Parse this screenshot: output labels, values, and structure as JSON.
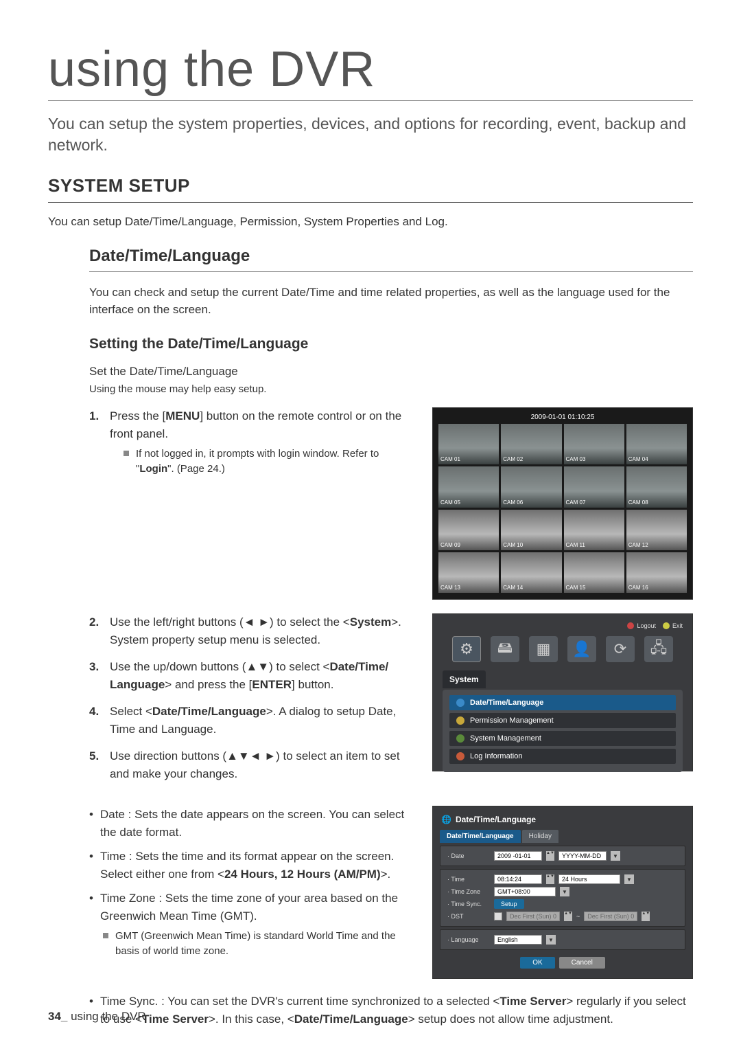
{
  "page": {
    "title": "using the DVR",
    "intro": "You can setup the system properties, devices, and options for recording, event, backup and network.",
    "section_title": "SYSTEM SETUP",
    "section_desc": "You can setup Date/Time/Language, Permission, System Properties and Log.",
    "sub_title": "Date/Time/Language",
    "sub_desc": "You can check and setup the current Date/Time and time related properties, as well as the language used for the interface on the screen.",
    "sub2_title": "Setting the Date/Time/Language",
    "sub2_desc": "Set the Date/Time/Language",
    "sub2_note": "Using the mouse may help easy setup.",
    "step1_a": "Press the [",
    "step1_menu": "MENU",
    "step1_b": "] button on the remote control or on the front panel.",
    "step1_note_a": "If not logged in, it prompts with login window. Refer to \"",
    "step1_note_login": "Login",
    "step1_note_b": "\". (Page 24.)",
    "step2_a": "Use the left/right buttons (◄ ►) to select the <",
    "step2_sys": "System",
    "step2_b": ">. System property setup menu is selected.",
    "step3_a": "Use the up/down buttons (▲▼) to select <",
    "step3_item": "Date/Time/ Language",
    "step3_b": "> and press the [",
    "step3_enter": "ENTER",
    "step3_c": "] button.",
    "step4_a": "Select <",
    "step4_item": "Date/Time/Language",
    "step4_b": ">. A dialog to setup Date, Time and Language.",
    "step5": "Use direction buttons (▲▼◄ ►) to select an item to set and make your changes.",
    "bul_date": "Date : Sets the date appears on the screen. You can select the date format.",
    "bul_time_a": "Time : Sets the time and its format appear on the screen. Select either one from <",
    "bul_time_fmt": "24 Hours, 12 Hours (AM/PM)",
    "bul_time_b": ">.",
    "bul_tz": "Time Zone : Sets the time zone of your area based on the Greenwich Mean Time (GMT).",
    "bul_tz_note": "GMT (Greenwich Mean Time) is standard World Time and the basis of world time zone.",
    "bul_sync_a": "Time Sync. : You can set the DVR's current time synchronized to a selected <",
    "bul_sync_ts": "Time Server",
    "bul_sync_b": "> regularly if you select to use <",
    "bul_sync_c": ">. In this case, <",
    "bul_sync_dtl": "Date/Time/Language",
    "bul_sync_d": "> setup does not allow time adjustment.",
    "footer_num": "34_",
    "footer_txt": " using the DVR"
  },
  "fig1": {
    "timestamp": "2009-01-01 01:10:25",
    "cams": [
      "CAM 01",
      "CAM 02",
      "CAM 03",
      "CAM 04",
      "CAM 05",
      "CAM 06",
      "CAM 07",
      "CAM 08",
      "CAM 09",
      "CAM 10",
      "CAM 11",
      "CAM 12",
      "CAM 13",
      "CAM 14",
      "CAM 15",
      "CAM 16"
    ]
  },
  "fig2": {
    "logout": "Logout",
    "exit": "Exit",
    "section": "System",
    "items": [
      "Date/Time/Language",
      "Permission Management",
      "System Management",
      "Log Information"
    ],
    "icon_colors": [
      "#3a8ac8",
      "#c8a83a",
      "#5a8a3a",
      "#c85a3a"
    ]
  },
  "fig3": {
    "title": "Date/Time/Language",
    "tabs": [
      "Date/Time/Language",
      "Holiday"
    ],
    "labels": {
      "date": "· Date",
      "time": "· Time",
      "tz": "· Time Zone",
      "sync": "· Time Sync.",
      "dst": "· DST",
      "lang": "· Language"
    },
    "values": {
      "date": "2009 -01-01",
      "datefmt": "YYYY-MM-DD",
      "time": "08:14:24",
      "timefmt": "24 Hours",
      "tz": "GMT+08:00",
      "setup": "Setup",
      "dst1": "Dec First (Sun) 0",
      "dst2": "Dec First (Sun) 0",
      "lang": "English"
    },
    "ok": "OK",
    "cancel": "Cancel"
  }
}
